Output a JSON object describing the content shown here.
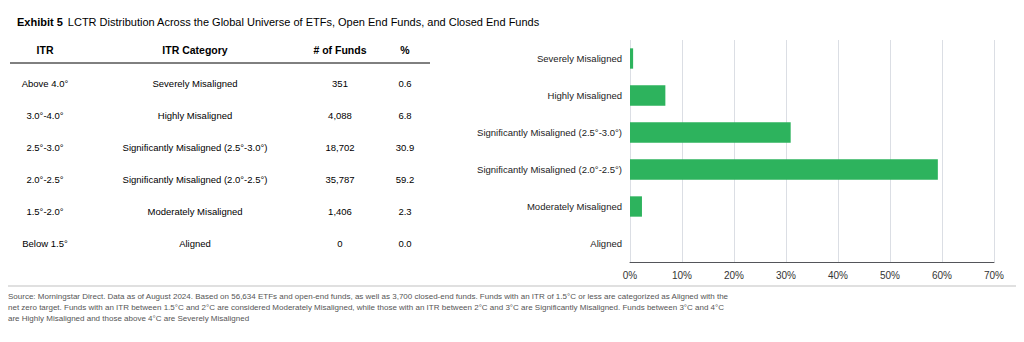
{
  "chart_data": {
    "type": "bar",
    "orientation": "horizontal",
    "title": "Exhibit 5",
    "subtitle": "LCTR Distribution Across the Global Universe of ETFs, Open End Funds, and Closed End Funds",
    "categories": [
      "Severely Misaligned",
      "Highly Misaligned",
      "Significantly Misaligned (2.5°-3.0°)",
      "Significantly Misaligned (2.0°-2.5°)",
      "Moderately Misaligned",
      "Aligned"
    ],
    "values": [
      0.6,
      6.8,
      30.9,
      59.2,
      2.3,
      0.0
    ],
    "color": "#2db35d",
    "xlim": [
      0,
      70
    ],
    "xticks": [
      {
        "value": 0,
        "label": "0%"
      },
      {
        "value": 10,
        "label": "10%"
      },
      {
        "value": 20,
        "label": "20%"
      },
      {
        "value": 30,
        "label": "30%"
      },
      {
        "value": 40,
        "label": "40%"
      },
      {
        "value": 50,
        "label": "50%"
      },
      {
        "value": 60,
        "label": "60%"
      },
      {
        "value": 70,
        "label": "70%"
      }
    ],
    "grid": true,
    "table": {
      "headers": [
        "ITR",
        "ITR Category",
        "# of Funds",
        "%"
      ],
      "rows": [
        [
          "Above 4.0°",
          "Severely Misaligned",
          "351",
          "0.6"
        ],
        [
          "3.0°-4.0°",
          "Highly Misaligned",
          "4,088",
          "6.8"
        ],
        [
          "2.5°-3.0°",
          "Significantly Misaligned (2.5°-3.0°)",
          "18,702",
          "30.9"
        ],
        [
          "2.0°-2.5°",
          "Significantly Misaligned (2.0°-2.5°)",
          "35,787",
          "59.2"
        ],
        [
          "1.5°-2.0°",
          "Moderately Misaligned",
          "1,406",
          "2.3"
        ],
        [
          "Below 1.5°",
          "Aligned",
          "0",
          "0.0"
        ]
      ]
    },
    "annotations": [
      "Source: Morningstar Direct. Data as of August 2024. Based on 56,634 ETFs and open-end funds, as well as 3,700 closed-end funds. Funds with an ITR of 1.5°C or less are categorized as Aligned with the\nnet zero target. Funds with an ITR between 1.5°C and 2°C are considered Moderately Misaligned, while those with an ITR between 2°C and 3°C are Significantly Misaligned. Funds between 3°C and 4°C\nare Highly Misaligned and those above 4°C are Severely Misaligned"
    ]
  }
}
